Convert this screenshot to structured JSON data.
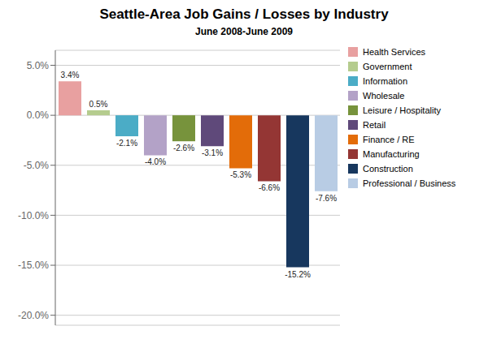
{
  "chart_data": {
    "type": "bar",
    "title": "Seattle-Area Job Gains / Losses by Industry",
    "subtitle": "June 2008-June 2009",
    "categories": [
      "Health Services",
      "Government",
      "Information",
      "Wholesale",
      "Leisure / Hospitality",
      "Retail",
      "Finance / RE",
      "Manufacturing",
      "Construction",
      "Professional / Business"
    ],
    "values": [
      3.4,
      0.5,
      -2.1,
      -4.0,
      -2.6,
      -3.1,
      -5.3,
      -6.6,
      -15.2,
      -7.6
    ],
    "value_labels": [
      "3.4%",
      "0.5%",
      "-2.1%",
      "-4.0%",
      "-2.6%",
      "-3.1%",
      "-5.3%",
      "-6.6%",
      "-15.2%",
      "-7.6%"
    ],
    "colors": [
      "#e8a0a0",
      "#b5cc8e",
      "#4bacc6",
      "#b3a2c7",
      "#77933c",
      "#5f497a",
      "#e36c09",
      "#943634",
      "#17375e",
      "#b8cce4"
    ],
    "ylim": [
      -21.0,
      6.5
    ],
    "yticks": [
      {
        "value": 5.0,
        "label": "5.0%"
      },
      {
        "value": 0.0,
        "label": "0.0%"
      },
      {
        "value": -5.0,
        "label": "-5.0%"
      },
      {
        "value": -10.0,
        "label": "-10.0%"
      },
      {
        "value": -15.0,
        "label": "-15.0%"
      },
      {
        "value": -20.0,
        "label": "-20.0%"
      }
    ],
    "grid": true,
    "legend": "right",
    "data_labels": true,
    "tick_labels": "y"
  }
}
